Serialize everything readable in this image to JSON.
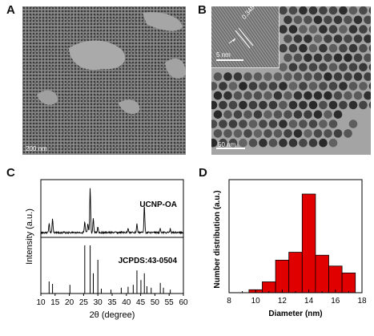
{
  "panels": {
    "a": {
      "letter": "A",
      "scale_text": "200 nm"
    },
    "b": {
      "letter": "B",
      "scale_text": "50 nm",
      "inset_scale_text": "5 nm",
      "lattice_spacing": "0.348 nm"
    },
    "c": {
      "letter": "C"
    },
    "d": {
      "letter": "D"
    }
  },
  "chart_data": [
    {
      "type": "line",
      "panel": "C",
      "xlabel": "2θ (degree)",
      "ylabel": "Intensity (a.u.)",
      "xlim": [
        10,
        60
      ],
      "xticks": [
        10,
        15,
        20,
        25,
        30,
        35,
        40,
        45,
        50,
        55,
        60
      ],
      "series": [
        {
          "name": "UCNP-OA",
          "peaks": [
            [
              12.9,
              0.2
            ],
            [
              14.1,
              0.28
            ],
            [
              25.4,
              0.22
            ],
            [
              26.5,
              0.18
            ],
            [
              27.3,
              0.95
            ],
            [
              28.4,
              0.3
            ],
            [
              30.0,
              0.12
            ],
            [
              40.6,
              0.1
            ],
            [
              43.7,
              0.18
            ],
            [
              46.3,
              0.6
            ],
            [
              51.9,
              0.1
            ],
            [
              55.4,
              0.08
            ]
          ]
        },
        {
          "name": "JCPDS:43-0504",
          "sticks": [
            [
              12.9,
              0.25
            ],
            [
              14.1,
              0.2
            ],
            [
              20.2,
              0.18
            ],
            [
              25.4,
              1.0
            ],
            [
              27.3,
              1.0
            ],
            [
              28.4,
              0.42
            ],
            [
              30.0,
              0.7
            ],
            [
              31.2,
              0.1
            ],
            [
              34.6,
              0.08
            ],
            [
              38.2,
              0.12
            ],
            [
              40.6,
              0.14
            ],
            [
              42.4,
              0.18
            ],
            [
              43.7,
              0.48
            ],
            [
              45.1,
              0.28
            ],
            [
              46.3,
              0.42
            ],
            [
              47.2,
              0.15
            ],
            [
              48.7,
              0.12
            ],
            [
              51.9,
              0.22
            ],
            [
              53.0,
              0.12
            ],
            [
              55.4,
              0.08
            ]
          ]
        }
      ]
    },
    {
      "type": "bar",
      "panel": "D",
      "xlabel": "Diameter (nm)",
      "ylabel": "Number distribution (a.u.)",
      "xlim": [
        8,
        18
      ],
      "xticks": [
        8,
        10,
        12,
        14,
        16,
        18
      ],
      "bar_centers": [
        10,
        11,
        12,
        13,
        14,
        15,
        16,
        17
      ],
      "values": [
        0.03,
        0.11,
        0.33,
        0.41,
        1.0,
        0.38,
        0.27,
        0.2
      ],
      "color": "#e00000"
    }
  ]
}
